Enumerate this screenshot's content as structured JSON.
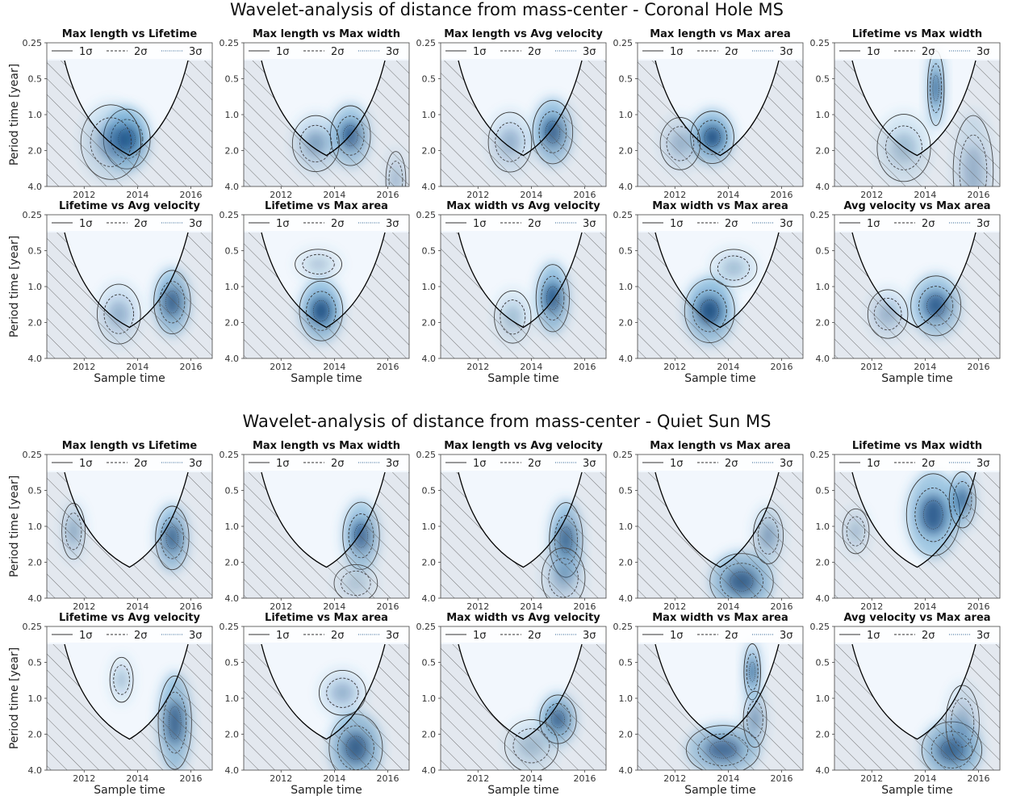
{
  "figure": {
    "sections": [
      {
        "title": "Wavelet-analysis of distance from mass-center - Coronal Hole MS",
        "panels": [
          {
            "title": "Max length vs Lifetime"
          },
          {
            "title": "Max length vs Max width"
          },
          {
            "title": "Max length vs Avg velocity"
          },
          {
            "title": "Max length vs Max area"
          },
          {
            "title": "Lifetime vs Max width"
          },
          {
            "title": "Lifetime vs Avg velocity"
          },
          {
            "title": "Lifetime vs Max area"
          },
          {
            "title": "Max width vs Avg velocity"
          },
          {
            "title": "Max width vs Max area"
          },
          {
            "title": "Avg velocity vs Max area"
          }
        ]
      },
      {
        "title": "Wavelet-analysis of distance from mass-center - Quiet Sun MS",
        "panels": [
          {
            "title": "Max length vs Lifetime"
          },
          {
            "title": "Max length vs Max width"
          },
          {
            "title": "Max length vs Avg velocity"
          },
          {
            "title": "Max length vs Max area"
          },
          {
            "title": "Lifetime vs Max width"
          },
          {
            "title": "Lifetime vs Avg velocity"
          },
          {
            "title": "Lifetime vs Max area"
          },
          {
            "title": "Max width vs Avg velocity"
          },
          {
            "title": "Max width vs Max area"
          },
          {
            "title": "Avg velocity vs Max area"
          }
        ]
      }
    ],
    "xlabel": "Sample time",
    "ylabel": "Period time [year]",
    "legend": {
      "labels": [
        "1σ",
        "2σ",
        "3σ"
      ],
      "placement": "top"
    },
    "colors": {
      "power_max": "#08306b",
      "power_mid": "#4292c6",
      "power_low": "#deebf7",
      "contour": "#333333",
      "coi": "#000000"
    }
  },
  "chart_data": {
    "type": "heatmap",
    "description_units": "x in years, y = period in years (log axis)",
    "xlim": [
      2010.6,
      2016.8
    ],
    "ylim": [
      0.25,
      4.0
    ],
    "x_ticks": [
      "2012",
      "2014",
      "2016"
    ],
    "x_tick_values": [
      2012,
      2014,
      2016
    ],
    "y_ticks": [
      "0.25",
      "0.5",
      "1.0",
      "2.0",
      "4.0"
    ],
    "y_tick_values": [
      0.25,
      0.5,
      1.0,
      2.0,
      4.0
    ],
    "cone_of_influence_min_year": 2013.7,
    "cone_of_influence_min_period": 2.2,
    "panels": [
      {
        "section": 0,
        "name": "Max length vs Lifetime",
        "blobs": [
          {
            "x": 2013.6,
            "p": 1.6,
            "w": 1.4,
            "h": 0.16,
            "a": 0.95
          },
          {
            "x": 2013.0,
            "p": 1.7,
            "w": 1.8,
            "h": 0.2,
            "a": 0.4
          }
        ]
      },
      {
        "section": 0,
        "name": "Max length vs Max width",
        "blobs": [
          {
            "x": 2014.6,
            "p": 1.5,
            "w": 1.2,
            "h": 0.16,
            "a": 0.85
          },
          {
            "x": 2013.3,
            "p": 1.75,
            "w": 1.4,
            "h": 0.15,
            "a": 0.45
          },
          {
            "x": 2016.3,
            "p": 3.5,
            "w": 0.6,
            "h": 0.15,
            "a": 0.35
          }
        ]
      },
      {
        "section": 0,
        "name": "Max length vs Avg velocity",
        "blobs": [
          {
            "x": 2014.8,
            "p": 1.4,
            "w": 1.2,
            "h": 0.17,
            "a": 0.9
          },
          {
            "x": 2013.2,
            "p": 1.7,
            "w": 1.3,
            "h": 0.16,
            "a": 0.35
          }
        ]
      },
      {
        "section": 0,
        "name": "Max length vs Max area",
        "blobs": [
          {
            "x": 2013.4,
            "p": 1.55,
            "w": 1.3,
            "h": 0.14,
            "a": 0.95
          },
          {
            "x": 2012.2,
            "p": 1.75,
            "w": 1.2,
            "h": 0.14,
            "a": 0.35
          }
        ]
      },
      {
        "section": 0,
        "name": "Lifetime vs Max width",
        "blobs": [
          {
            "x": 2014.4,
            "p": 0.6,
            "w": 0.5,
            "h": 0.2,
            "a": 0.95
          },
          {
            "x": 2013.2,
            "p": 1.9,
            "w": 1.6,
            "h": 0.18,
            "a": 0.3
          },
          {
            "x": 2015.8,
            "p": 3.0,
            "w": 1.2,
            "h": 0.3,
            "a": 0.35
          }
        ]
      },
      {
        "section": 0,
        "name": "Lifetime vs Avg velocity",
        "blobs": [
          {
            "x": 2015.3,
            "p": 1.35,
            "w": 1.1,
            "h": 0.17,
            "a": 0.95
          },
          {
            "x": 2013.3,
            "p": 1.7,
            "w": 1.3,
            "h": 0.16,
            "a": 0.35
          }
        ]
      },
      {
        "section": 0,
        "name": "Lifetime vs Max area",
        "blobs": [
          {
            "x": 2013.5,
            "p": 1.6,
            "w": 1.3,
            "h": 0.16,
            "a": 0.95
          },
          {
            "x": 2013.4,
            "p": 0.65,
            "w": 1.4,
            "h": 0.08,
            "a": 0.25
          }
        ]
      },
      {
        "section": 0,
        "name": "Max width vs Avg velocity",
        "blobs": [
          {
            "x": 2014.8,
            "p": 1.25,
            "w": 1.0,
            "h": 0.18,
            "a": 0.95
          },
          {
            "x": 2013.3,
            "p": 1.8,
            "w": 1.1,
            "h": 0.14,
            "a": 0.3
          }
        ]
      },
      {
        "section": 0,
        "name": "Max width vs Max area",
        "blobs": [
          {
            "x": 2013.3,
            "p": 1.6,
            "w": 1.5,
            "h": 0.17,
            "a": 0.95
          },
          {
            "x": 2014.2,
            "p": 0.7,
            "w": 1.4,
            "h": 0.1,
            "a": 0.3
          }
        ]
      },
      {
        "section": 0,
        "name": "Avg velocity vs Max area",
        "blobs": [
          {
            "x": 2014.4,
            "p": 1.45,
            "w": 1.5,
            "h": 0.16,
            "a": 0.85
          },
          {
            "x": 2012.6,
            "p": 1.7,
            "w": 1.2,
            "h": 0.13,
            "a": 0.35
          }
        ]
      },
      {
        "section": 1,
        "name": "Max length vs Lifetime",
        "blobs": [
          {
            "x": 2015.3,
            "p": 1.25,
            "w": 1.0,
            "h": 0.17,
            "a": 0.9
          },
          {
            "x": 2011.6,
            "p": 1.1,
            "w": 0.7,
            "h": 0.15,
            "a": 0.45
          }
        ]
      },
      {
        "section": 1,
        "name": "Max length vs Max width",
        "blobs": [
          {
            "x": 2015.0,
            "p": 1.2,
            "w": 1.1,
            "h": 0.18,
            "a": 0.85
          },
          {
            "x": 2014.8,
            "p": 3.0,
            "w": 1.3,
            "h": 0.1,
            "a": 0.25
          }
        ]
      },
      {
        "section": 1,
        "name": "Max length vs Avg velocity",
        "blobs": [
          {
            "x": 2015.3,
            "p": 1.3,
            "w": 1.0,
            "h": 0.2,
            "a": 0.9
          },
          {
            "x": 2015.2,
            "p": 2.7,
            "w": 1.3,
            "h": 0.16,
            "a": 0.35
          }
        ]
      },
      {
        "section": 1,
        "name": "Max length vs Max area",
        "blobs": [
          {
            "x": 2014.5,
            "p": 2.9,
            "w": 1.9,
            "h": 0.15,
            "a": 0.95
          },
          {
            "x": 2015.5,
            "p": 1.2,
            "w": 0.9,
            "h": 0.15,
            "a": 0.5
          }
        ]
      },
      {
        "section": 1,
        "name": "Lifetime vs Max width",
        "blobs": [
          {
            "x": 2014.3,
            "p": 0.8,
            "w": 1.6,
            "h": 0.22,
            "a": 0.85
          },
          {
            "x": 2015.4,
            "p": 0.6,
            "w": 0.8,
            "h": 0.15,
            "a": 0.8
          },
          {
            "x": 2011.4,
            "p": 1.1,
            "w": 0.8,
            "h": 0.12,
            "a": 0.3
          }
        ]
      },
      {
        "section": 1,
        "name": "Lifetime vs Avg velocity",
        "blobs": [
          {
            "x": 2015.4,
            "p": 1.6,
            "w": 1.0,
            "h": 0.25,
            "a": 0.95
          },
          {
            "x": 2013.4,
            "p": 0.7,
            "w": 0.7,
            "h": 0.12,
            "a": 0.3
          }
        ]
      },
      {
        "section": 1,
        "name": "Lifetime vs Max area",
        "blobs": [
          {
            "x": 2014.8,
            "p": 2.6,
            "w": 1.6,
            "h": 0.18,
            "a": 0.95
          },
          {
            "x": 2014.3,
            "p": 0.9,
            "w": 1.4,
            "h": 0.12,
            "a": 0.35
          }
        ]
      },
      {
        "section": 1,
        "name": "Max width vs Avg velocity",
        "blobs": [
          {
            "x": 2015.0,
            "p": 1.5,
            "w": 1.1,
            "h": 0.13,
            "a": 0.95
          },
          {
            "x": 2014.0,
            "p": 2.5,
            "w": 1.6,
            "h": 0.14,
            "a": 0.3
          }
        ]
      },
      {
        "section": 1,
        "name": "Max width vs Max area",
        "blobs": [
          {
            "x": 2013.8,
            "p": 2.7,
            "w": 2.2,
            "h": 0.13,
            "a": 0.85
          },
          {
            "x": 2014.9,
            "p": 0.6,
            "w": 0.5,
            "h": 0.15,
            "a": 0.9
          },
          {
            "x": 2015.0,
            "p": 1.5,
            "w": 0.7,
            "h": 0.15,
            "a": 0.55
          }
        ]
      },
      {
        "section": 1,
        "name": "Avg velocity vs Max area",
        "blobs": [
          {
            "x": 2015.0,
            "p": 2.7,
            "w": 1.8,
            "h": 0.15,
            "a": 0.95
          },
          {
            "x": 2015.4,
            "p": 1.6,
            "w": 1.0,
            "h": 0.2,
            "a": 0.35
          }
        ]
      }
    ]
  }
}
